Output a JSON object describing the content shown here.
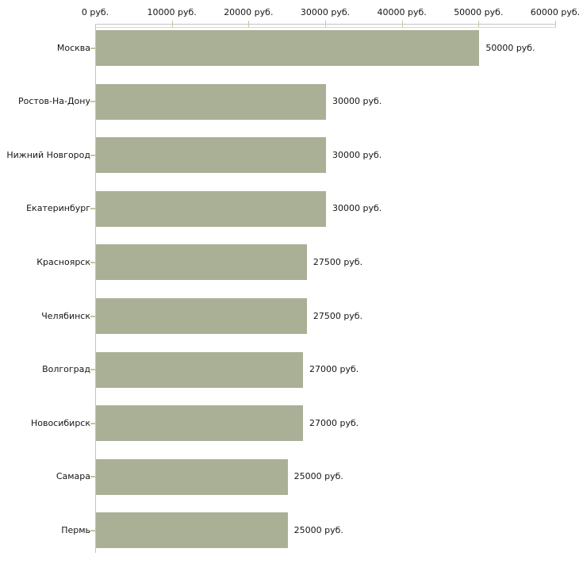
{
  "chart_data": {
    "type": "bar",
    "orientation": "horizontal",
    "title": "",
    "xlabel": "",
    "ylabel": "",
    "unit": "руб.",
    "categories": [
      "Москва",
      "Ростов-На-Дону",
      "Нижний Новгород",
      "Екатеринбург",
      "Красноярск",
      "Челябинск",
      "Волгоград",
      "Новосибирск",
      "Самара",
      "Пермь"
    ],
    "values": [
      50000,
      30000,
      30000,
      30000,
      27500,
      27500,
      27000,
      27000,
      25000,
      25000
    ],
    "value_labels": [
      "50000 руб.",
      "30000 руб.",
      "30000 руб.",
      "30000 руб.",
      "27500 руб.",
      "27500 руб.",
      "27000 руб.",
      "27000 руб.",
      "25000 руб.",
      "25000 руб."
    ],
    "x_ticks": [
      0,
      10000,
      20000,
      30000,
      40000,
      50000,
      60000
    ],
    "x_tick_labels": [
      "0 руб.",
      "10000 руб.",
      "20000 руб.",
      "30000 руб.",
      "40000 руб.",
      "50000 руб.",
      "60000 руб."
    ],
    "xlim": [
      0,
      60000
    ],
    "grid": false,
    "legend_position": "none",
    "colors": {
      "bar": "#aab096",
      "axis": "#c3c3c3",
      "tick": "#c6c69b",
      "text": "#161616",
      "background": "#ffffff"
    }
  }
}
